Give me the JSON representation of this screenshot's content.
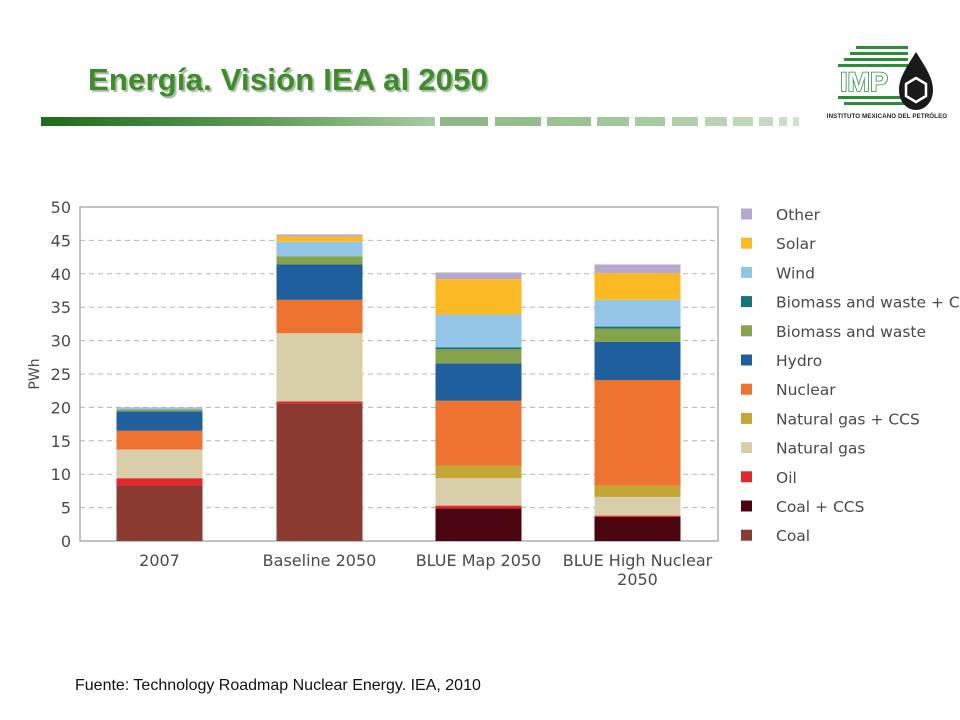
{
  "slide": {
    "title": "Energía. Visión IEA al 2050",
    "source": "Fuente: Technology Roadmap Nuclear Energy. IEA, 2010",
    "accent_color": "#3f8a2a"
  },
  "logo": {
    "text": "IMP",
    "caption": "INSTITUTO MEXICANO DEL PETRÓLEO",
    "color": "#2e8b3c"
  },
  "chart_data": {
    "type": "bar",
    "stacked": true,
    "title": "",
    "xlabel": "",
    "ylabel": "PWh",
    "ylim": [
      0,
      50
    ],
    "yticks": [
      0,
      5,
      10,
      15,
      20,
      25,
      30,
      35,
      40,
      45,
      50
    ],
    "grid": true,
    "legend_position": "right",
    "categories": [
      "2007",
      "Baseline 2050",
      "BLUE Map 2050",
      "BLUE High Nuclear 2050"
    ],
    "category_lines": [
      [
        "2007"
      ],
      [
        "Baseline 2050"
      ],
      [
        "BLUE Map 2050"
      ],
      [
        "BLUE High Nuclear",
        "2050"
      ]
    ],
    "series": [
      {
        "name": "Coal",
        "color": "#8b3a32",
        "values": [
          8.3,
          20.6,
          0,
          0
        ]
      },
      {
        "name": "Coal + CCS",
        "color": "#4a0510",
        "values": [
          0,
          0,
          4.9,
          3.6
        ]
      },
      {
        "name": "Oil",
        "color": "#e0282d",
        "values": [
          1.1,
          0.3,
          0.4,
          0.2
        ]
      },
      {
        "name": "Natural gas",
        "color": "#d8ceaa",
        "values": [
          4.3,
          10.2,
          4.1,
          2.8
        ]
      },
      {
        "name": "Natural gas + CCS",
        "color": "#c3a634",
        "values": [
          0,
          0,
          1.9,
          1.7
        ]
      },
      {
        "name": "Nuclear",
        "color": "#ee7230",
        "values": [
          2.8,
          5.0,
          9.7,
          15.8
        ]
      },
      {
        "name": "Hydro",
        "color": "#1f5f9e",
        "values": [
          2.9,
          5.3,
          5.6,
          5.7
        ]
      },
      {
        "name": "Biomass and waste",
        "color": "#86a24a",
        "values": [
          0.3,
          1.2,
          2.1,
          2.0
        ]
      },
      {
        "name": "Biomass and waste + CCS",
        "color": "#137676",
        "values": [
          0,
          0,
          0.3,
          0.3
        ]
      },
      {
        "name": "Wind",
        "color": "#92c5e6",
        "values": [
          0.2,
          2.2,
          4.9,
          4.0
        ]
      },
      {
        "name": "Solar",
        "color": "#fbb924",
        "values": [
          0,
          0.8,
          5.3,
          4.0
        ]
      },
      {
        "name": "Other",
        "color": "#b5aacd",
        "values": [
          0.1,
          0.3,
          1.0,
          1.3
        ]
      }
    ]
  }
}
